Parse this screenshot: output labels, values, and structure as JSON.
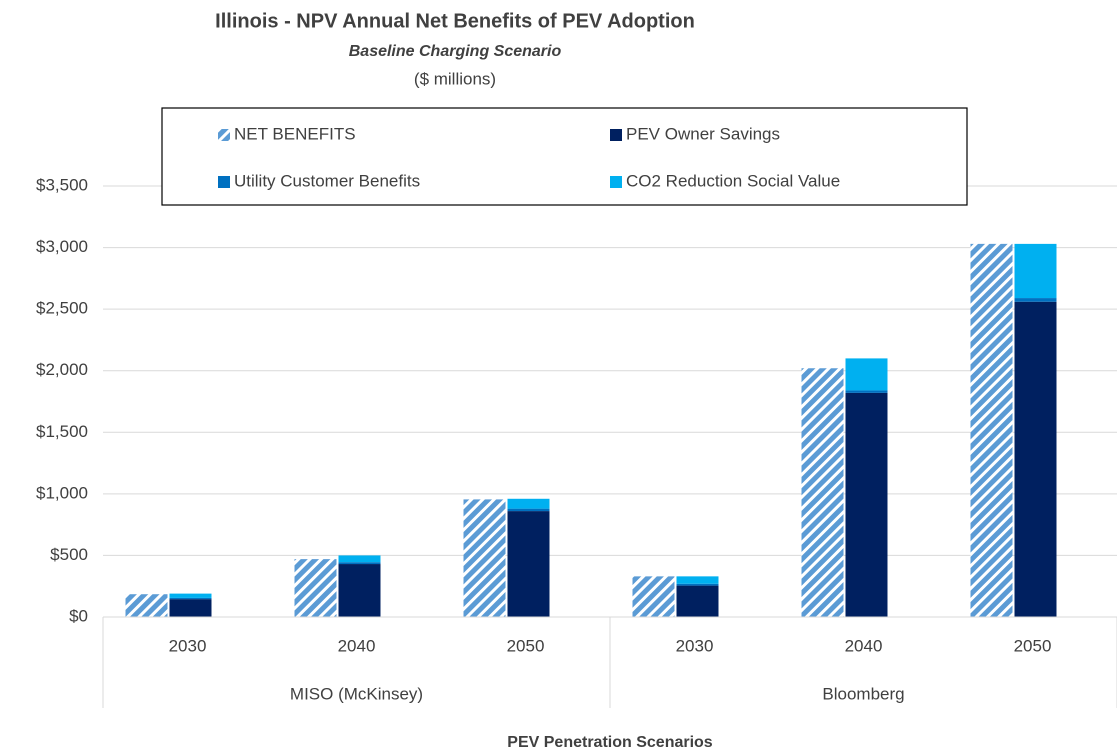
{
  "chart_data": {
    "type": "bar",
    "title": "Illinois - NPV Annual Net Benefits of PEV Adoption",
    "subtitle": "Baseline Charging Scenario",
    "unit_label": "($ millions)",
    "x_label": "PEV Penetration Scenarios",
    "categories": [
      "2030",
      "2040",
      "2050",
      "2030",
      "2040",
      "2050"
    ],
    "groups": [
      {
        "name": "MISO (McKinsey)",
        "span": 3
      },
      {
        "name": "Bloomberg",
        "span": 3
      }
    ],
    "series": [
      {
        "name": "NET BENEFITS",
        "color": "#5b9bd5",
        "pattern": "hatch",
        "stacked": false,
        "values": [
          185,
          470,
          955,
          330,
          2020,
          3030
        ]
      },
      {
        "name": "PEV Owner Savings",
        "color": "#002060",
        "stacked": true,
        "values": [
          145,
          430,
          860,
          255,
          1820,
          2560
        ]
      },
      {
        "name": "Utility Customer Benefits",
        "color": "#0070c0",
        "stacked": true,
        "values": [
          10,
          15,
          20,
          15,
          20,
          30
        ]
      },
      {
        "name": "CO2 Reduction Social Value",
        "color": "#00b0f0",
        "stacked": true,
        "values": [
          35,
          55,
          80,
          60,
          260,
          440
        ]
      }
    ],
    "ylim": [
      0,
      3500
    ],
    "yticks": [
      {
        "value": 0,
        "label": "$0"
      },
      {
        "value": 500,
        "label": "$500"
      },
      {
        "value": 1000,
        "label": "$1,000"
      },
      {
        "value": 1500,
        "label": "$1,500"
      },
      {
        "value": 2000,
        "label": "$2,000"
      },
      {
        "value": 2500,
        "label": "$2,500"
      },
      {
        "value": 3000,
        "label": "$3,000"
      },
      {
        "value": 3500,
        "label": "$3,500"
      }
    ],
    "grid": true,
    "legend": "top"
  }
}
